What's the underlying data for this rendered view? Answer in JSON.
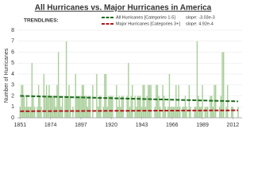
{
  "chart_data": {
    "type": "bar",
    "title": "All Hurricanes vs. Major Hurricanes in America",
    "y_label": "Number of Hurricanes",
    "legend_title": "TRENDLINES:",
    "x_start": 1851,
    "values": [
      1,
      3,
      3,
      2,
      1,
      2,
      1,
      1,
      1,
      5,
      2,
      1,
      0,
      1,
      3,
      2,
      1,
      0,
      4,
      2,
      3,
      2,
      3,
      2,
      2,
      2,
      2,
      1,
      3,
      6,
      2,
      1,
      2,
      0,
      2,
      7,
      2,
      3,
      2,
      0,
      1,
      0,
      4,
      2,
      2,
      2,
      2,
      3,
      3,
      2,
      2,
      1,
      2,
      2,
      0,
      3,
      0,
      0,
      4,
      1,
      2,
      2,
      0,
      1,
      4,
      4,
      1,
      2,
      2,
      2,
      2,
      0,
      0,
      3,
      1,
      2,
      1,
      2,
      2,
      0,
      0,
      2,
      5,
      1,
      2,
      3,
      0,
      2,
      1,
      2,
      2,
      2,
      1,
      3,
      3,
      1,
      2,
      3,
      3,
      3,
      0,
      0,
      1,
      3,
      3,
      2,
      1,
      0,
      3,
      2,
      1,
      0,
      1,
      4,
      1,
      1,
      1,
      1,
      3,
      1,
      3,
      1,
      0,
      1,
      1,
      2,
      1,
      0,
      3,
      1,
      0,
      0,
      1,
      1,
      7,
      2,
      1,
      1,
      3,
      0,
      1,
      1,
      1,
      0,
      2,
      2,
      1,
      3,
      3,
      0,
      0,
      1,
      2,
      6,
      6,
      0,
      1,
      3,
      0,
      0,
      1,
      1,
      0,
      0,
      0,
      1
    ],
    "color": "#a9cf9a",
    "trendlines": [
      {
        "name": "All Hurricanes [Categories 1-5]",
        "slope_label": "slope: -3.03e-3",
        "color": "#1e6b1e",
        "x": [
          1851,
          2016
        ],
        "values": [
          2.0,
          1.5
        ]
      },
      {
        "name": "Major Hurricanes [Categories 3+]",
        "slope_label": "slope: 4.92e-4",
        "color": "#b01818",
        "x": [
          1851,
          2016
        ],
        "values": [
          0.6,
          0.68
        ]
      }
    ],
    "xlim": [
      1849,
      2019
    ],
    "xticks": [
      1851,
      1874,
      1897,
      1920,
      1943,
      1966,
      1989,
      2012
    ],
    "ylim": [
      0,
      8
    ],
    "yticks": [
      0,
      1,
      2,
      3,
      4,
      5,
      6,
      7,
      8
    ],
    "grid": true
  }
}
